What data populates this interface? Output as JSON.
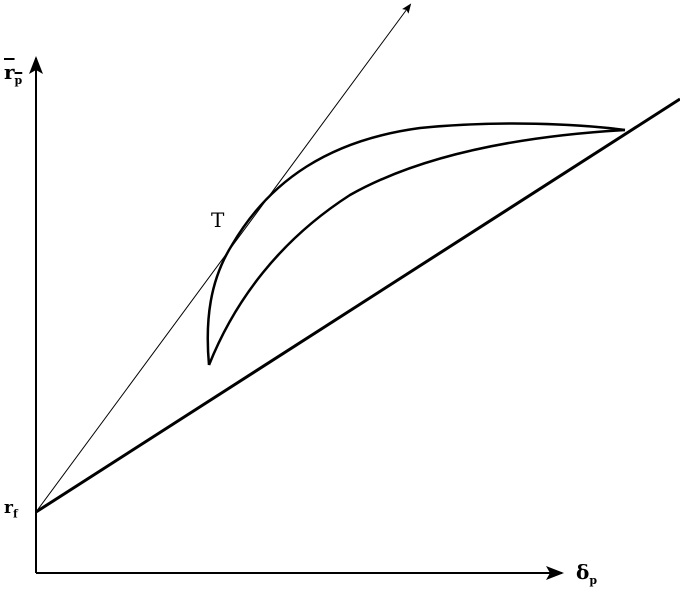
{
  "labels": {
    "y_axis": "r",
    "y_axis_sub": "p",
    "x_axis": "δ",
    "x_axis_sub": "p",
    "intercept": "r",
    "intercept_sub": "f",
    "tangent_point": "T"
  },
  "colors": {
    "ink": "#000000",
    "background": "#ffffff"
  }
}
